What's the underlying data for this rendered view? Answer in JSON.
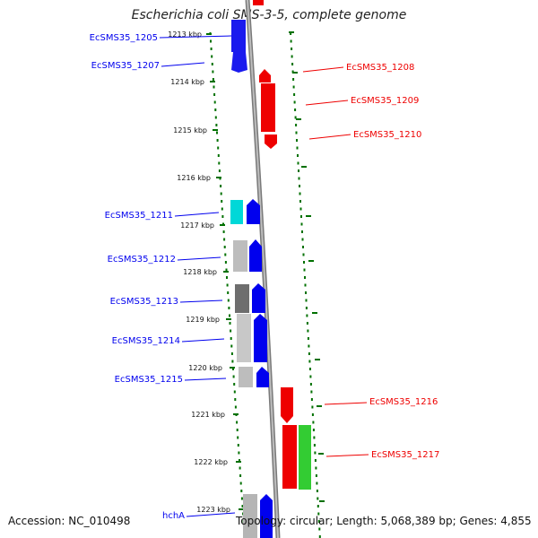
{
  "title": "Escherichia coli SMS-3-5, complete genome",
  "footer": {
    "accession": "Accession: NC_010498",
    "topology": "Topology: circular; Length: 5,068,389 bp; Genes: 4,855"
  },
  "colors": {
    "forward": "#0000ee",
    "reverse": "#ee0000",
    "ruler": "#007000",
    "backbone": "#888888"
  },
  "ruler_labels": [
    "1213 kbp",
    "1214 kbp",
    "1215 kbp",
    "1216 kbp",
    "1217 kbp",
    "1218 kbp",
    "1219 kbp",
    "1220 kbp",
    "1221 kbp",
    "1222 kbp",
    "1223 kbp"
  ],
  "genes_left": [
    "EcSMS35_1205",
    "EcSMS35_1207",
    "EcSMS35_1211",
    "EcSMS35_1212",
    "EcSMS35_1213",
    "EcSMS35_1214",
    "EcSMS35_1215",
    "hchA"
  ],
  "genes_right": [
    "EcSMS35_1208",
    "EcSMS35_1209",
    "EcSMS35_1210",
    "EcSMS35_1216",
    "EcSMS35_1217"
  ]
}
